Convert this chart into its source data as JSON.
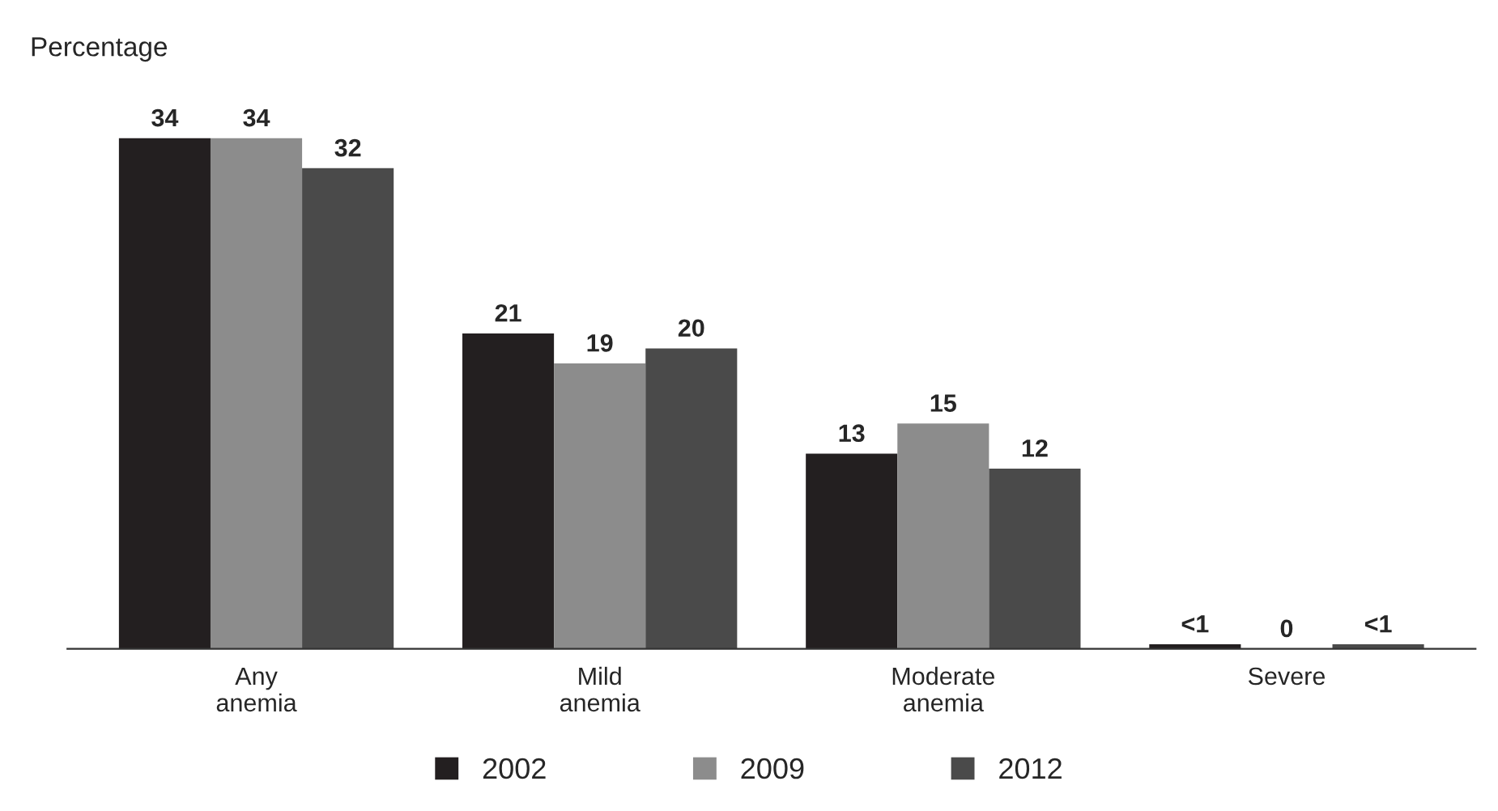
{
  "chart_data": {
    "type": "bar",
    "ylabel": "Percentage",
    "categories": [
      "Any\nanemia",
      "Mild\nanemia",
      "Moderate\nanemia",
      "Severe"
    ],
    "series": [
      {
        "name": "2002",
        "color": "#231f20",
        "values": [
          34,
          21,
          13,
          0.3
        ],
        "value_labels": [
          "34",
          "21",
          "13",
          "<1"
        ]
      },
      {
        "name": "2009",
        "color": "#8c8c8c",
        "values": [
          34,
          19,
          15,
          0
        ],
        "value_labels": [
          "34",
          "19",
          "15",
          "0"
        ]
      },
      {
        "name": "2012",
        "color": "#4a4a4a",
        "values": [
          32,
          20,
          12,
          0.3
        ],
        "value_labels": [
          "32",
          "20",
          "12",
          "<1"
        ]
      }
    ],
    "legend": "bottom",
    "grid": false
  }
}
